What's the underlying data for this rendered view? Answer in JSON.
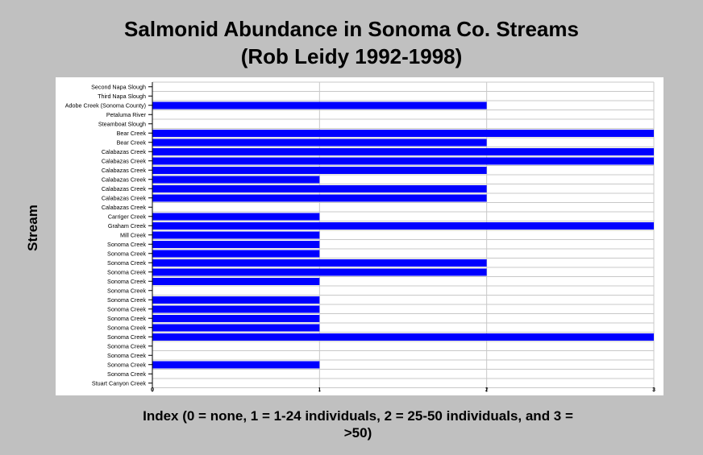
{
  "chart_data": {
    "type": "bar",
    "orientation": "horizontal",
    "title_line1": "Salmonid Abundance in Sonoma Co. Streams",
    "title_line2": "(Rob Leidy 1992-1998)",
    "ylabel": "Stream",
    "xlabel_line1": "Index (0 = none, 1 = 1-24 individuals, 2 = 25-50 individuals, and 3 =",
    "xlabel_line2": ">50)",
    "xlim": [
      0,
      3
    ],
    "xticks": [
      "0",
      "1",
      "2",
      "3"
    ],
    "grid": true,
    "bar_color": "#0000ff",
    "categories": [
      "Second Napa Slough",
      "Third Napa Slough",
      "Adobe Creek (Sonoma County)",
      "Petaluma River",
      "Steamboat Slough",
      "Bear Creek",
      "Bear Creek",
      "Calabazas Creek",
      "Calabazas Creek",
      "Calabazas Creek",
      "Calabazas Creek",
      "Calabazas Creek",
      "Calabazas Creek",
      "Calabazas Creek",
      "Carriger Creek",
      "Graham Creek",
      "Mill Creek",
      "Sonoma Creek",
      "Sonoma Creek",
      "Sonoma Creek",
      "Sonoma Creek",
      "Sonoma Creek",
      "Sonoma Creek",
      "Sonoma Creek",
      "Sonoma Creek",
      "Sonoma Creek",
      "Sonoma Creek",
      "Sonoma Creek",
      "Sonoma Creek",
      "Sonoma Creek",
      "Sonoma Creek",
      "Sonoma Creek",
      "Stuart Canyon Creek"
    ],
    "values": [
      0,
      0,
      2,
      0,
      0,
      3,
      2,
      3,
      3,
      2,
      1,
      2,
      2,
      0,
      1,
      3,
      1,
      1,
      1,
      2,
      2,
      1,
      0,
      1,
      1,
      1,
      1,
      3,
      0,
      0,
      1,
      0,
      0
    ]
  }
}
